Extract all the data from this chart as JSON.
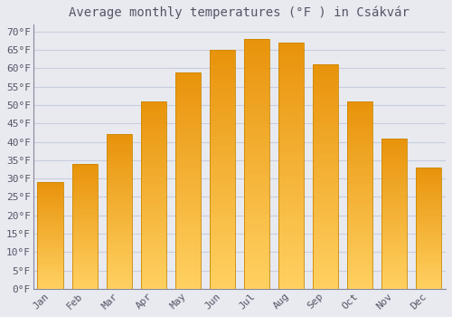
{
  "title": "Average monthly temperatures (°F ) in Csákvár",
  "months": [
    "Jan",
    "Feb",
    "Mar",
    "Apr",
    "May",
    "Jun",
    "Jul",
    "Aug",
    "Sep",
    "Oct",
    "Nov",
    "Dec"
  ],
  "values": [
    29,
    34,
    42,
    51,
    59,
    65,
    68,
    67,
    61,
    51,
    41,
    33
  ],
  "bar_color_top": "#E8920A",
  "bar_color_bottom": "#FFD060",
  "bar_edge_color": "#CC8800",
  "ylim": [
    0,
    72
  ],
  "yticks": [
    0,
    5,
    10,
    15,
    20,
    25,
    30,
    35,
    40,
    45,
    50,
    55,
    60,
    65,
    70
  ],
  "ylabel_suffix": "°F",
  "background_color": "#E8EAF0",
  "plot_bg_color": "#E8EAF0",
  "grid_color": "#C8CEDE",
  "title_fontsize": 10,
  "tick_fontsize": 8,
  "font_color": "#555566",
  "spine_color": "#888899"
}
